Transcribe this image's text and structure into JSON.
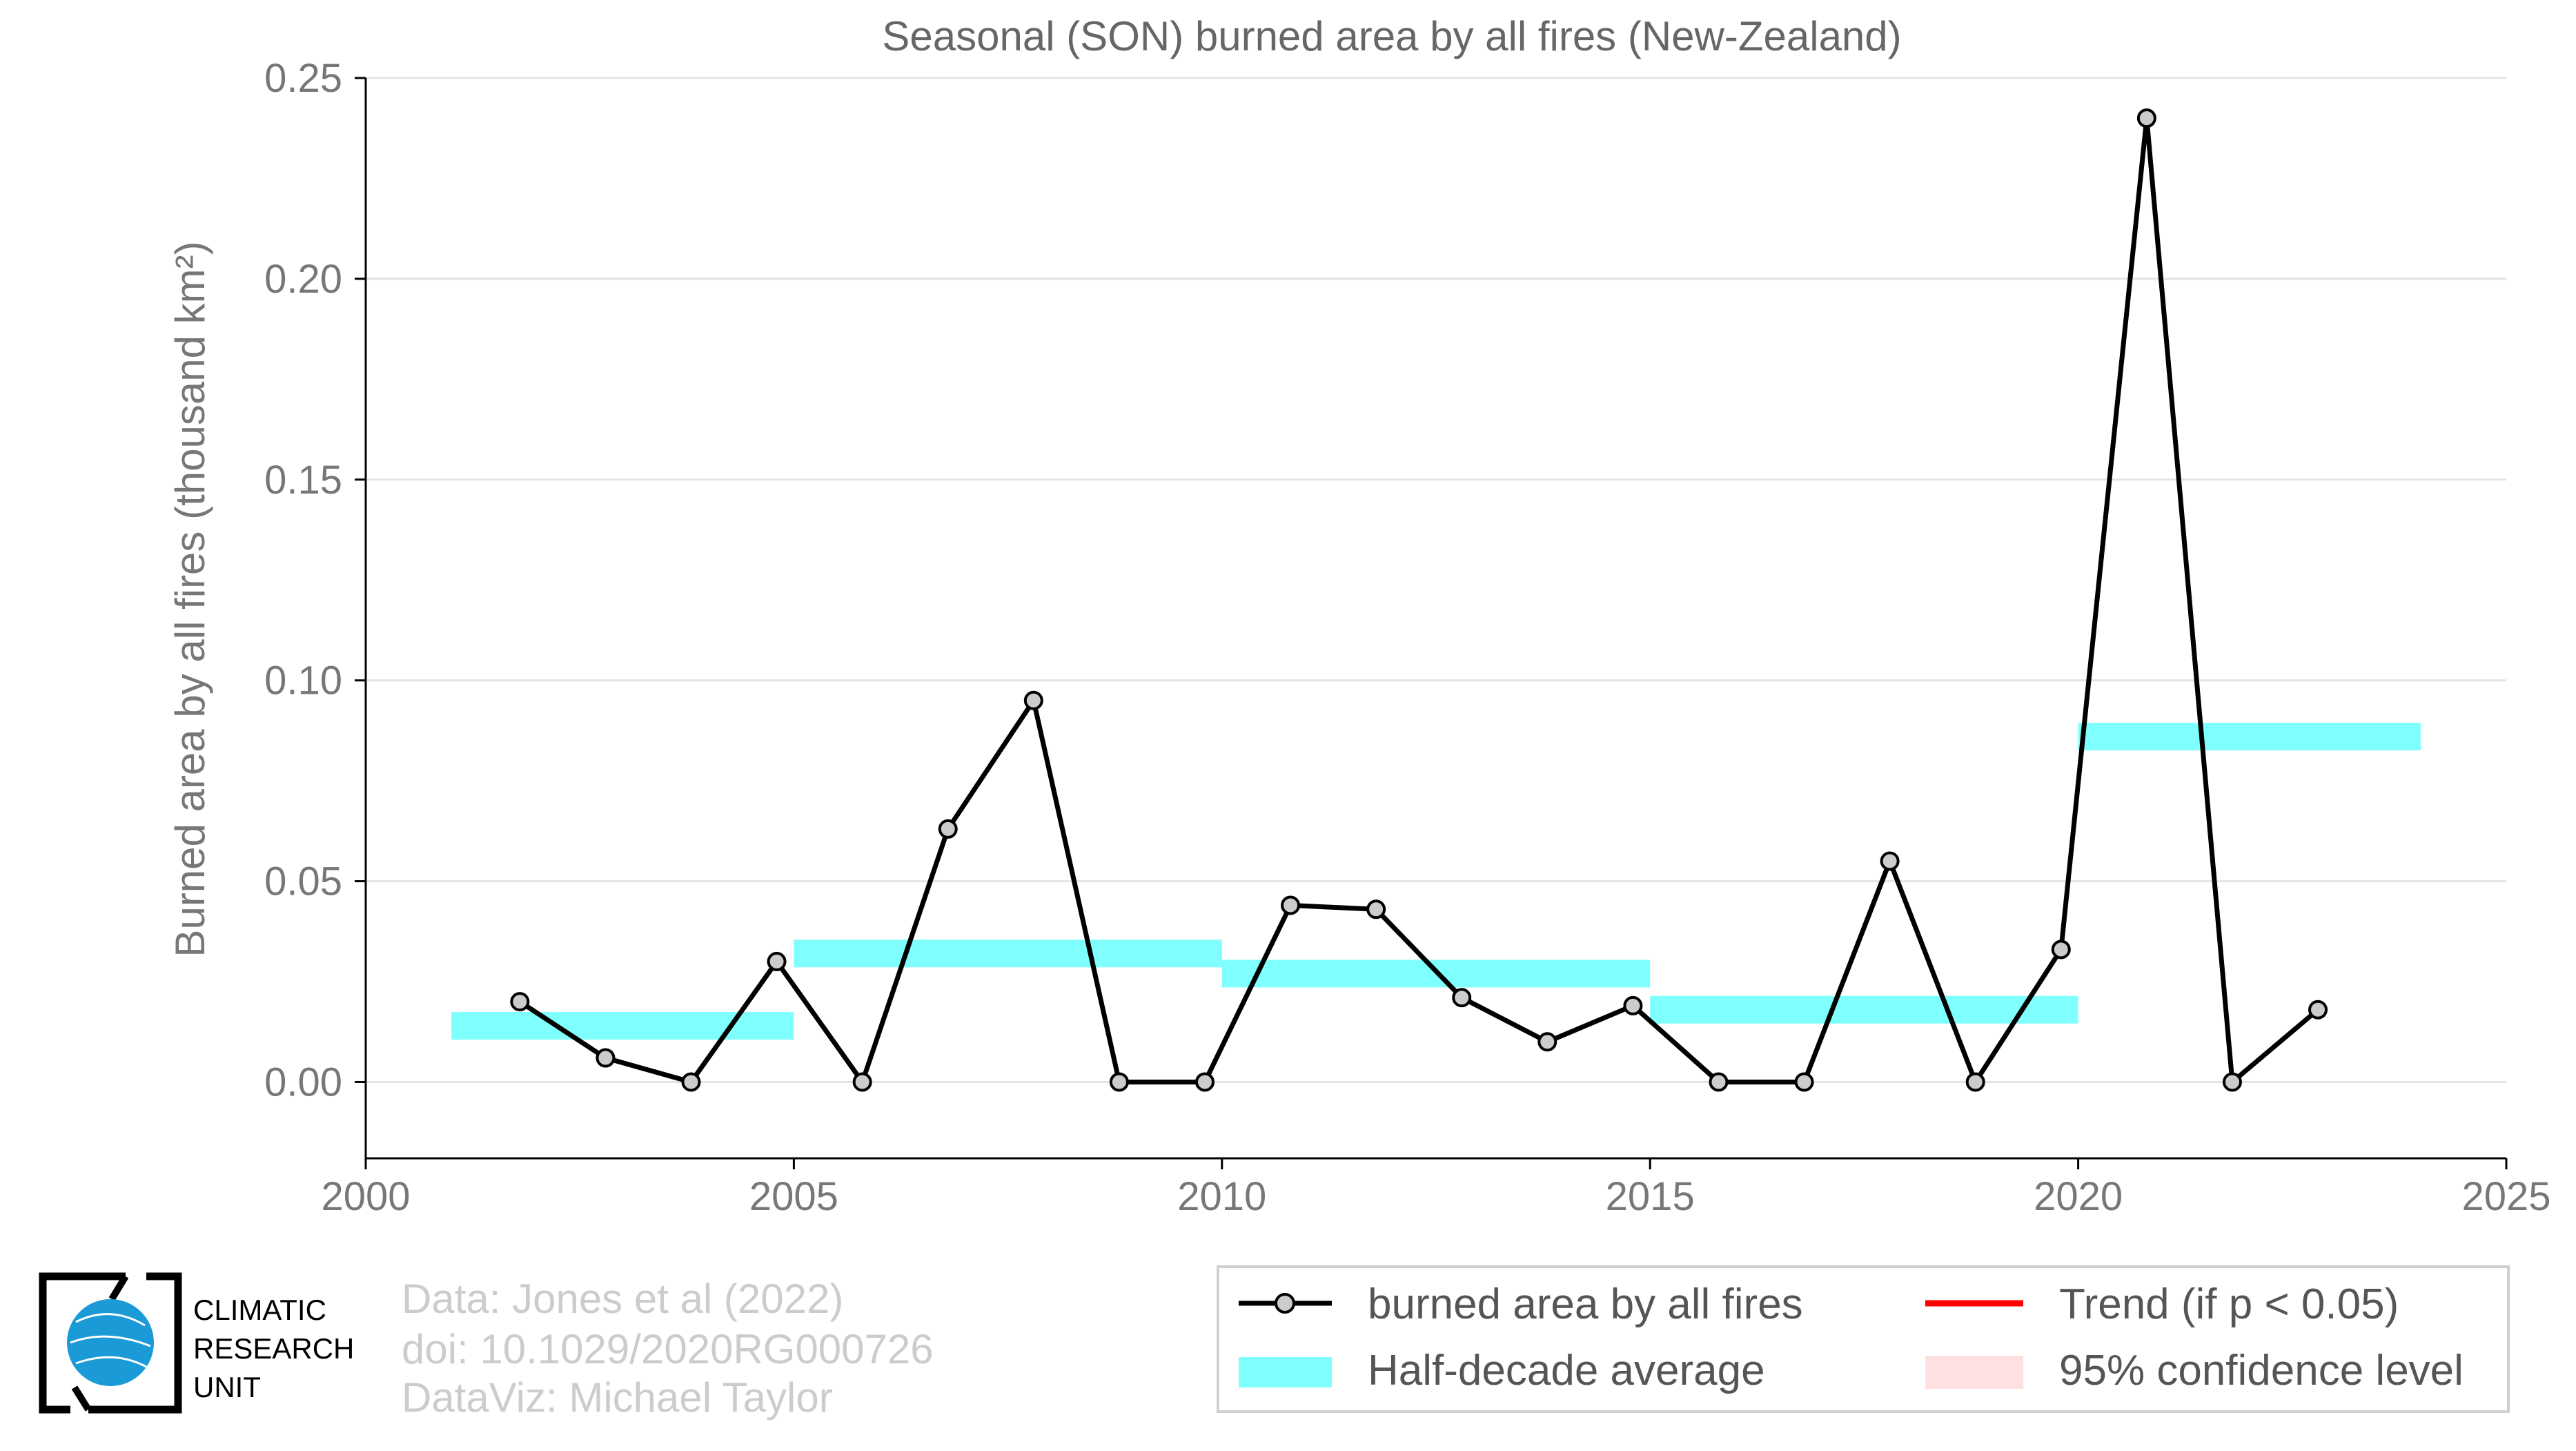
{
  "chart_data": {
    "type": "line",
    "title": "Seasonal (SON) burned area by all fires (New-Zealand)",
    "ylabel": "Burned area by all fires (thousand km²)",
    "xlabel": "",
    "xlim": [
      2000,
      2025
    ],
    "ylim": [
      -0.019,
      0.25
    ],
    "x_ticks": [
      "2000",
      "2005",
      "2010",
      "2015",
      "2020",
      "2025"
    ],
    "y_ticks": [
      "0.00",
      "0.05",
      "0.10",
      "0.15",
      "0.20",
      "0.25"
    ],
    "grid": "horizontal",
    "series": [
      {
        "name": "burned area by all fires",
        "color": "#000000",
        "marker_fill": "#cccccc",
        "x": [
          2001.8,
          2002.8,
          2003.8,
          2004.8,
          2005.8,
          2006.8,
          2007.8,
          2008.8,
          2009.8,
          2010.8,
          2011.8,
          2012.8,
          2013.8,
          2014.8,
          2015.8,
          2016.8,
          2017.8,
          2018.8,
          2019.8,
          2020.8,
          2021.8,
          2022.8
        ],
        "values": [
          0.02,
          0.006,
          0.0,
          0.03,
          0.0,
          0.063,
          0.095,
          0.0,
          0.0,
          0.044,
          0.043,
          0.021,
          0.01,
          0.019,
          0.0,
          0.0,
          0.055,
          0.0,
          0.033,
          0.24,
          0.0,
          0.018
        ]
      }
    ],
    "half_decade_average": {
      "name": "Half-decade average",
      "color": "#80ffff",
      "segments": [
        {
          "x_start": 2001,
          "x_end": 2005,
          "value": 0.014
        },
        {
          "x_start": 2005,
          "x_end": 2010,
          "value": 0.032
        },
        {
          "x_start": 2010,
          "x_end": 2015,
          "value": 0.027
        },
        {
          "x_start": 2015,
          "x_end": 2020,
          "value": 0.018
        },
        {
          "x_start": 2020,
          "x_end": 2024,
          "value": 0.086
        }
      ]
    },
    "legend": {
      "placement": "bottom-right",
      "items": [
        {
          "label": "burned area by all fires",
          "kind": "line-marker",
          "color": "#000000"
        },
        {
          "label": "Trend (if p < 0.05)",
          "kind": "line",
          "color": "#ff0000"
        },
        {
          "label": "Half-decade average",
          "kind": "band",
          "color": "#80ffff"
        },
        {
          "label": "95% confidence level",
          "kind": "band",
          "color": "#ffe0e0"
        }
      ]
    }
  },
  "credits": {
    "data": "Data: Jones et al (2022)",
    "doi": "doi: 10.1029/2020RG000726",
    "dataviz": "DataViz: Michael Taylor"
  },
  "logo": {
    "line1": "CLIMATIC",
    "line2": "RESEARCH",
    "line3": "UNIT",
    "globe_color": "#1a9ad6"
  }
}
